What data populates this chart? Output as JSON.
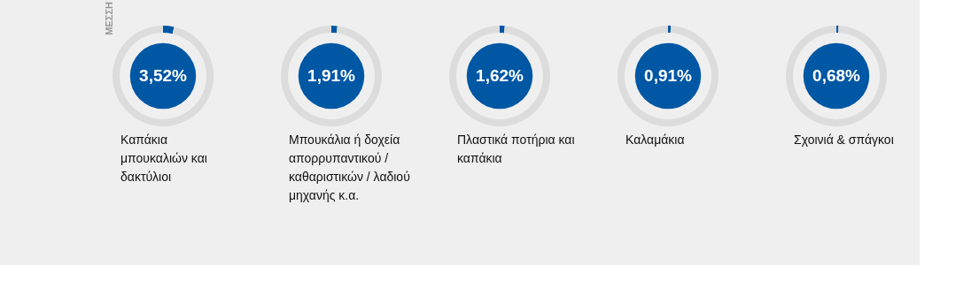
{
  "chart_data": [
    {
      "type": "donut",
      "title": "Καπάκια\nμπουκαλιών και\nδακτύλιοι",
      "categories": [
        null,
        null
      ],
      "values": [
        3.52,
        96.48
      ],
      "colors": [
        "#0057a4",
        "#dcdcdc"
      ],
      "value_labels": [
        "3,52%",
        null
      ],
      "legend": false,
      "annotations": [
        "ΜΕΣΣΗ"
      ]
    },
    {
      "type": "donut",
      "title": "Μπουκάλια ή δοχεία\nαπορρυπαντικού /\nκαθαριστικών / λαδιού\nμηχανής κ.α.",
      "categories": [
        null,
        null
      ],
      "values": [
        1.91,
        98.09
      ],
      "colors": [
        "#0057a4",
        "#dcdcdc"
      ],
      "value_labels": [
        "1,91%",
        null
      ],
      "legend": false
    },
    {
      "type": "donut",
      "title": "Πλαστικά ποτήρια και\nκαπάκια",
      "categories": [
        null,
        null
      ],
      "values": [
        1.62,
        98.38
      ],
      "colors": [
        "#0057a4",
        "#dcdcdc"
      ],
      "value_labels": [
        "1,62%",
        null
      ],
      "legend": false
    },
    {
      "type": "donut",
      "title": "Καλαμάκια",
      "categories": [
        null,
        null
      ],
      "values": [
        0.91,
        99.09
      ],
      "colors": [
        "#0057a4",
        "#dcdcdc"
      ],
      "value_labels": [
        "0,91%",
        null
      ],
      "legend": false
    },
    {
      "type": "donut",
      "title": "Σχοινιά & σπάγκοι",
      "categories": [
        null,
        null
      ],
      "values": [
        0.68,
        99.32
      ],
      "colors": [
        "#0057a4",
        "#dcdcdc"
      ],
      "value_labels": [
        "0,68%",
        null
      ],
      "legend": false
    }
  ]
}
